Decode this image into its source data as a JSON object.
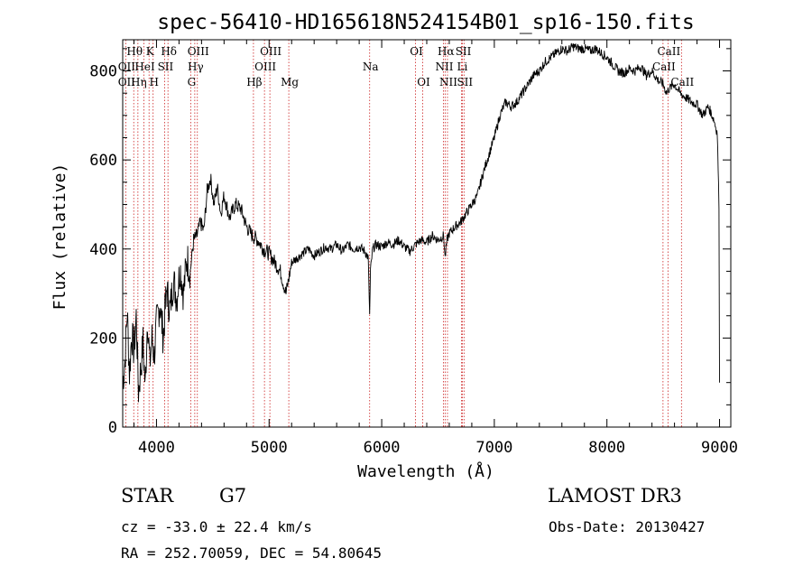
{
  "chart_data": {
    "type": "line",
    "title": "spec-56410-HD165618N524154B01_sp16-150.fits",
    "xlabel": "Wavelength (Å)",
    "ylabel": "Flux (relative)",
    "xlim": [
      3700,
      9100
    ],
    "ylim": [
      0,
      870
    ],
    "xticks": [
      4000,
      5000,
      6000,
      7000,
      8000,
      9000
    ],
    "yticks": [
      0,
      200,
      400,
      600,
      800
    ],
    "grid": false,
    "series": [
      {
        "name": "flux",
        "x": [
          3700,
          3720,
          3740,
          3760,
          3780,
          3800,
          3820,
          3840,
          3860,
          3880,
          3900,
          3920,
          3940,
          3960,
          3980,
          4000,
          4030,
          4060,
          4090,
          4120,
          4150,
          4180,
          4210,
          4240,
          4270,
          4300,
          4330,
          4360,
          4390,
          4420,
          4450,
          4480,
          4510,
          4540,
          4570,
          4600,
          4650,
          4700,
          4750,
          4800,
          4850,
          4900,
          4950,
          5000,
          5050,
          5100,
          5150,
          5180,
          5200,
          5250,
          5300,
          5350,
          5400,
          5450,
          5500,
          5550,
          5600,
          5650,
          5700,
          5750,
          5800,
          5850,
          5880,
          5893,
          5900,
          5920,
          5950,
          6000,
          6050,
          6100,
          6150,
          6200,
          6250,
          6300,
          6350,
          6400,
          6450,
          6500,
          6550,
          6563,
          6580,
          6600,
          6650,
          6700,
          6750,
          6800,
          6850,
          6900,
          6950,
          7000,
          7050,
          7100,
          7150,
          7200,
          7250,
          7300,
          7350,
          7400,
          7450,
          7500,
          7550,
          7600,
          7650,
          7700,
          7750,
          7800,
          7850,
          7900,
          7950,
          8000,
          8050,
          8100,
          8150,
          8200,
          8250,
          8300,
          8350,
          8400,
          8450,
          8500,
          8530,
          8550,
          8600,
          8650,
          8700,
          8750,
          8800,
          8850,
          8900,
          8950,
          8980,
          8995,
          9000
        ],
        "y": [
          100,
          150,
          260,
          120,
          210,
          170,
          250,
          80,
          130,
          190,
          90,
          250,
          140,
          200,
          160,
          230,
          280,
          200,
          310,
          260,
          330,
          290,
          360,
          300,
          380,
          350,
          420,
          430,
          460,
          440,
          530,
          560,
          500,
          540,
          480,
          520,
          470,
          500,
          490,
          450,
          430,
          420,
          400,
          390,
          370,
          350,
          300,
          340,
          370,
          380,
          390,
          400,
          385,
          395,
          405,
          400,
          410,
          395,
          410,
          400,
          405,
          395,
          380,
          250,
          350,
          400,
          410,
          405,
          415,
          410,
          420,
          405,
          395,
          410,
          420,
          415,
          430,
          420,
          430,
          380,
          420,
          435,
          450,
          460,
          480,
          500,
          520,
          570,
          610,
          650,
          700,
          730,
          720,
          730,
          750,
          770,
          790,
          800,
          820,
          830,
          840,
          850,
          845,
          855,
          850,
          850,
          845,
          850,
          840,
          830,
          815,
          800,
          795,
          805,
          800,
          810,
          790,
          800,
          780,
          770,
          750,
          760,
          770,
          750,
          740,
          730,
          725,
          700,
          720,
          690,
          660,
          500,
          100
        ]
      }
    ],
    "spectral_lines": [
      {
        "label": "Hθ",
        "row": 1,
        "wavelength": 3798
      },
      {
        "label": "OII",
        "row": 2,
        "wavelength": 3727
      },
      {
        "label": "OII",
        "row": 3,
        "wavelength": 3727
      },
      {
        "label": "K",
        "row": 1,
        "wavelength": 3934
      },
      {
        "label": "HeI",
        "row": 2,
        "wavelength": 3889
      },
      {
        "label": "Hη",
        "row": 3,
        "wavelength": 3835
      },
      {
        "label": "SII",
        "row": 2,
        "wavelength": 4072
      },
      {
        "label": "H",
        "row": 3,
        "wavelength": 3970
      },
      {
        "label": "Hδ",
        "row": 1,
        "wavelength": 4102
      },
      {
        "label": "OIII",
        "row": 1,
        "wavelength": 4363
      },
      {
        "label": "Hγ",
        "row": 2,
        "wavelength": 4340
      },
      {
        "label": "G",
        "row": 3,
        "wavelength": 4304
      },
      {
        "label": "OIII",
        "row": 1,
        "wavelength": 5007
      },
      {
        "label": "OIII",
        "row": 2,
        "wavelength": 4959
      },
      {
        "label": "Hβ",
        "row": 3,
        "wavelength": 4861
      },
      {
        "label": "Mg",
        "row": 3,
        "wavelength": 5175
      },
      {
        "label": "Na",
        "row": 2,
        "wavelength": 5893
      },
      {
        "label": "OI",
        "row": 1,
        "wavelength": 6300
      },
      {
        "label": "OI",
        "row": 3,
        "wavelength": 6364
      },
      {
        "label": "Hα",
        "row": 1,
        "wavelength": 6563
      },
      {
        "label": "NII",
        "row": 2,
        "wavelength": 6548
      },
      {
        "label": "NII",
        "row": 3,
        "wavelength": 6584
      },
      {
        "label": "SII",
        "row": 1,
        "wavelength": 6717
      },
      {
        "label": "Li",
        "row": 2,
        "wavelength": 6708
      },
      {
        "label": "SII",
        "row": 3,
        "wavelength": 6731
      },
      {
        "label": "CaII",
        "row": 1,
        "wavelength": 8542
      },
      {
        "label": "CaII",
        "row": 2,
        "wavelength": 8498
      },
      {
        "label": "CaII",
        "row": 3,
        "wavelength": 8662
      }
    ],
    "marker_lines": [
      3727,
      3798,
      3835,
      3889,
      3934,
      3970,
      4072,
      4102,
      4304,
      4340,
      4363,
      4861,
      4959,
      5007,
      5175,
      5893,
      6300,
      6364,
      6548,
      6563,
      6584,
      6708,
      6717,
      6731,
      8498,
      8542,
      8662
    ]
  },
  "info": {
    "object_class": "STAR",
    "subclass": "G7",
    "survey": "LAMOST DR3",
    "cz": "cz = -33.0 ± 22.4 km/s",
    "obs_date": "Obs-Date: 20130427",
    "coords": "RA = 252.70059, DEC =  54.80645"
  },
  "colors": {
    "line": "#000000",
    "marker": "#cc2222",
    "background": "#ffffff"
  }
}
